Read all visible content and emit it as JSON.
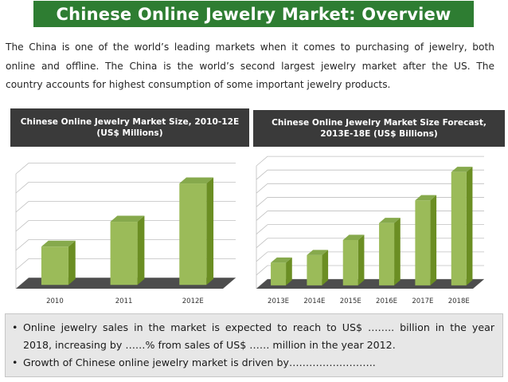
{
  "title": "Chinese Online Jewelry Market: Overview",
  "intro_lines": [
    "The China is one of the world’s leading markets when it comes to purchasing of jewelry, both",
    "online and offline. The China is the world’s second largest jewelry market after the US. The",
    "country accounts for highest consumption of some important jewelry products."
  ],
  "colors": {
    "title_bg": "#2e7d32",
    "chart_head_bg": "#3a3a3a",
    "bar_front": "#9bbb59",
    "bar_side": "#6b8e23",
    "bar_top": "#86a94c",
    "floor": "#4d4d4d",
    "bullets_bg": "#e7e7e7"
  },
  "chart_data": [
    {
      "type": "bar",
      "title": "Chinese Online Jewelry Market Size, 2010-12E (US$ Millions)",
      "categories": [
        "2010",
        "2011",
        "2012E"
      ],
      "values": [
        2,
        3.3,
        5.3
      ],
      "ylim": [
        0,
        6
      ],
      "gridlines": 6,
      "xlabel": "",
      "ylabel": "",
      "grid": true,
      "style": "3d"
    },
    {
      "type": "bar",
      "title": "Chinese Online Jewelry Market Size Forecast, 2013E-18E (US$ Billions)",
      "categories": [
        "2013E",
        "2014E",
        "2015E",
        "2016E",
        "2017E",
        "2018E"
      ],
      "values": [
        1.2,
        1.6,
        2.4,
        3.3,
        4.5,
        6.0
      ],
      "ylim": [
        0,
        6.5
      ],
      "gridlines": 9,
      "xlabel": "",
      "ylabel": "",
      "grid": true,
      "style": "3d"
    }
  ],
  "bullets": [
    {
      "line1": "Online jewelry sales in the market is expected to reach to US$ …….. billion in the year",
      "line2": "2018, increasing by ……% from sales of US$ …… million in the year 2012."
    },
    {
      "line1": "Growth of Chinese online jewelry market is driven by……………………..",
      "line2": ""
    }
  ]
}
